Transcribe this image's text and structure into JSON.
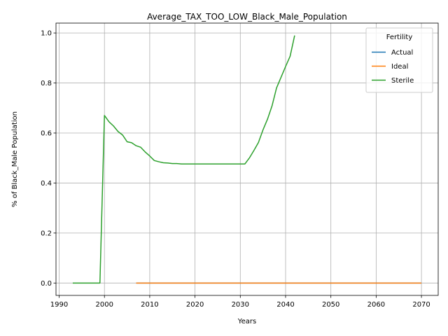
{
  "chart_data": {
    "type": "line",
    "title": "Average_TAX_TOO_LOW_Black_Male_Population",
    "xlabel": "Years",
    "ylabel": "% of Black_Male Population",
    "xlim": [
      1989.3,
      2073.7
    ],
    "ylim": [
      -0.0495,
      1.0395
    ],
    "xticks": [
      1990,
      2000,
      2010,
      2020,
      2030,
      2040,
      2050,
      2060,
      2070
    ],
    "yticks": [
      0.0,
      0.2,
      0.4,
      0.6,
      0.8,
      1.0
    ],
    "grid": true,
    "legend": {
      "title": "Fertility",
      "placement": "top-right"
    },
    "series": [
      {
        "name": "Actual",
        "color": "#1f77b4",
        "x": [
          2007,
          2070
        ],
        "y": [
          0.0,
          0.0
        ]
      },
      {
        "name": "Ideal",
        "color": "#ff7f0e",
        "x": [
          2007,
          2010,
          2020,
          2030,
          2040,
          2050,
          2060,
          2070
        ],
        "y": [
          0.0,
          0.0,
          0.0,
          0.0,
          0.0,
          0.0,
          0.0,
          0.0
        ]
      },
      {
        "name": "Sterile",
        "color": "#2ca02c",
        "x": [
          1993,
          1994,
          1995,
          1996,
          1997,
          1998,
          1999,
          2000,
          2001,
          2002,
          2003,
          2004,
          2005,
          2006,
          2007,
          2008,
          2009,
          2010,
          2011,
          2012,
          2013,
          2014,
          2015,
          2016,
          2017,
          2018,
          2019,
          2020,
          2021,
          2022,
          2023,
          2024,
          2025,
          2026,
          2027,
          2028,
          2029,
          2030,
          2031,
          2032,
          2033,
          2034,
          2035,
          2036,
          2037,
          2038,
          2039,
          2040,
          2041,
          2042
        ],
        "y": [
          0.0,
          0.0,
          0.0,
          0.0,
          0.0,
          0.0,
          0.0,
          0.67,
          0.645,
          0.628,
          0.606,
          0.592,
          0.565,
          0.561,
          0.549,
          0.543,
          0.524,
          0.508,
          0.49,
          0.485,
          0.481,
          0.48,
          0.478,
          0.478,
          0.476,
          0.476,
          0.476,
          0.476,
          0.476,
          0.476,
          0.476,
          0.476,
          0.476,
          0.476,
          0.476,
          0.476,
          0.476,
          0.476,
          0.476,
          0.5,
          0.53,
          0.562,
          0.612,
          0.655,
          0.708,
          0.78,
          0.823,
          0.866,
          0.907,
          0.99
        ]
      }
    ]
  }
}
